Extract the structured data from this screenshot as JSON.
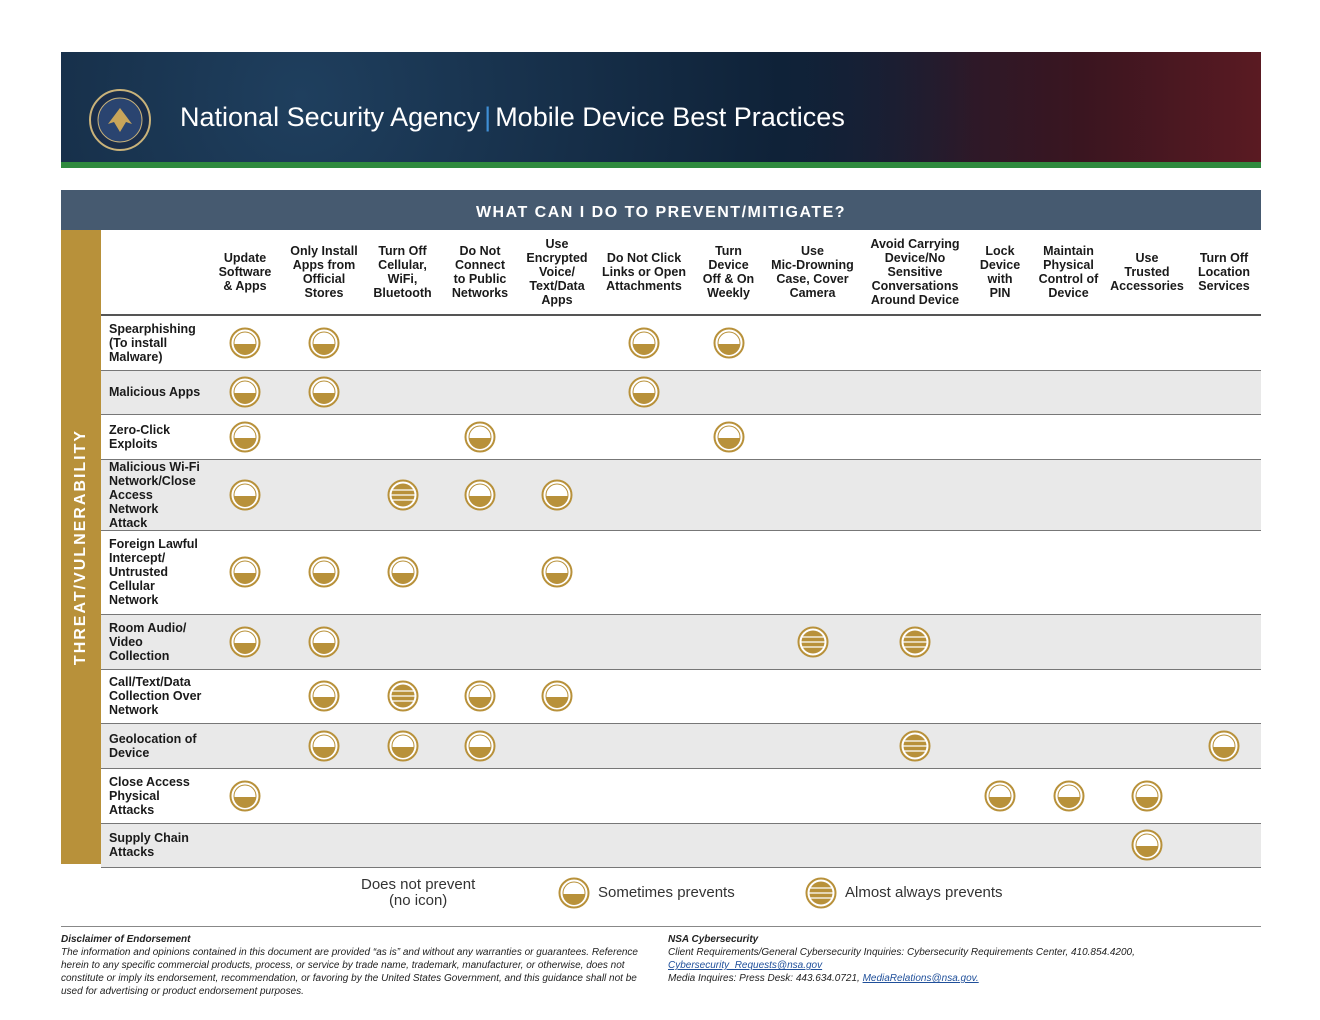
{
  "header": {
    "title_left": "National Security Agency",
    "separator": "|",
    "title_right": "Mobile Device Best Practices"
  },
  "table": {
    "banner": "WHAT CAN I DO TO PREVENT/MITIGATE?",
    "side_label": "THREAT/VULNERABILITY",
    "columns": [
      "Update\nSoftware\n& Apps",
      "Only Install\nApps from\nOfficial\nStores",
      "Turn Off\nCellular,\nWiFi,\nBluetooth",
      "Do Not\nConnect\nto Public\nNetworks",
      "Use\nEncrypted\nVoice/\nText/Data\nApps",
      "Do Not Click\nLinks or Open\nAttachments",
      "Turn\nDevice\nOff & On\nWeekly",
      "Use\nMic-Drowning\nCase, Cover\nCamera",
      "Avoid Carrying\nDevice/No\nSensitive\nConversations\nAround Device",
      "Lock\nDevice\nwith\nPIN",
      "Maintain\nPhysical\nControl of\nDevice",
      "Use\nTrusted\nAccessories",
      "Turn Off\nLocation\nServices"
    ],
    "rows": [
      {
        "label": "Spearphishing\n(To install\nMalware)",
        "cells": [
          1,
          1,
          0,
          0,
          0,
          1,
          1,
          0,
          0,
          0,
          0,
          0,
          0
        ]
      },
      {
        "label": "Malicious Apps",
        "cells": [
          1,
          1,
          0,
          0,
          0,
          1,
          0,
          0,
          0,
          0,
          0,
          0,
          0
        ]
      },
      {
        "label": "Zero-Click\nExploits",
        "cells": [
          1,
          0,
          0,
          1,
          0,
          0,
          1,
          0,
          0,
          0,
          0,
          0,
          0
        ]
      },
      {
        "label": "Malicious Wi-Fi\nNetwork/Close\nAccess Network\nAttack",
        "cells": [
          1,
          0,
          2,
          1,
          1,
          0,
          0,
          0,
          0,
          0,
          0,
          0,
          0
        ]
      },
      {
        "label": "Foreign Lawful\nIntercept/\nUntrusted\nCellular\nNetwork",
        "cells": [
          1,
          1,
          1,
          0,
          1,
          0,
          0,
          0,
          0,
          0,
          0,
          0,
          0
        ]
      },
      {
        "label": "Room Audio/\nVideo\nCollection",
        "cells": [
          1,
          1,
          0,
          0,
          0,
          0,
          0,
          2,
          2,
          0,
          0,
          0,
          0
        ]
      },
      {
        "label": "Call/Text/Data\nCollection Over\nNetwork",
        "cells": [
          0,
          1,
          2,
          1,
          1,
          0,
          0,
          0,
          0,
          0,
          0,
          0,
          0
        ]
      },
      {
        "label": "Geolocation of\nDevice",
        "cells": [
          0,
          1,
          1,
          1,
          0,
          0,
          0,
          0,
          2,
          0,
          0,
          0,
          1
        ]
      },
      {
        "label": "Close Access\nPhysical\nAttacks",
        "cells": [
          1,
          0,
          0,
          0,
          0,
          0,
          0,
          0,
          0,
          1,
          1,
          1,
          0
        ]
      },
      {
        "label": "Supply Chain\nAttacks",
        "cells": [
          0,
          0,
          0,
          0,
          0,
          0,
          0,
          0,
          0,
          0,
          0,
          1,
          0
        ]
      }
    ]
  },
  "legend": [
    {
      "label": "Does not prevent\n(no icon)",
      "level": 0
    },
    {
      "label": "Sometimes prevents",
      "level": 1
    },
    {
      "label": "Almost always prevents",
      "level": 2
    }
  ],
  "footer": {
    "disclaimer": {
      "title": "Disclaimer of Endorsement",
      "text": "The information and opinions contained in this document are provided “as is” and without any warranties or guarantees. Reference herein to any specific commercial products, process, or service by trade name, trademark, manufacturer, or otherwise, does not constitute or imply its endorsement, recommendation, or favoring by the United States Government, and this guidance shall not be used for advertising or product endorsement purposes."
    },
    "contact": {
      "title": "NSA Cybersecurity",
      "line1": "Client Requirements/General Cybersecurity Inquiries: Cybersecurity Requirements Center, 410.854.4200, ",
      "link1": "Cybersecurity_Requests@nsa.gov",
      "line2": "Media Inquires: Press Desk: 443.634.0721, ",
      "link2": "MediaRelations@nsa.gov."
    }
  }
}
